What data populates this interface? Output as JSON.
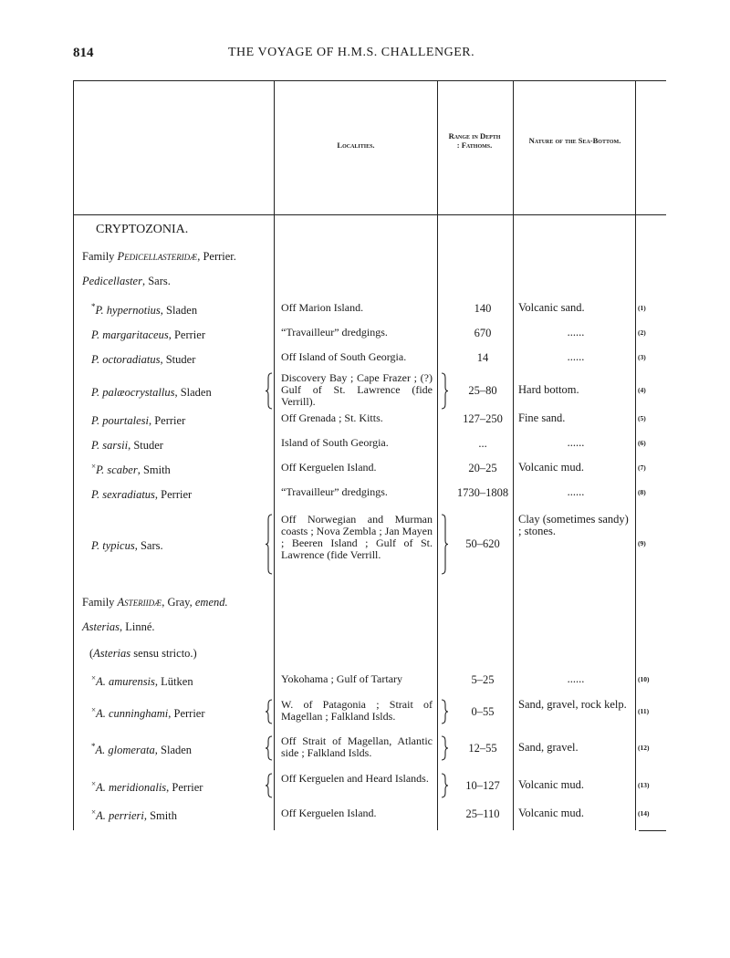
{
  "page_header": {
    "page_number": "814",
    "running_title": "THE VOYAGE OF H.M.S. CHALLENGER."
  },
  "columns": {
    "localities": "Localities.",
    "depth": "Range in Depth : Fathoms.",
    "bottom": "Nature of the Sea-Bottom."
  },
  "sections": {
    "cryptozonia": "CRYPTOZONIA.",
    "family1": {
      "prefix": "Family ",
      "name": "Pedicellasteridæ",
      "suffix": ", Perrier."
    },
    "genus1": {
      "name": "Pedicellaster",
      "suffix": ", Sars."
    },
    "family2": {
      "prefix": "Family ",
      "name": "Asteriidæ",
      "suffix": ", Gray, ",
      "emend": "emend."
    },
    "genus2": {
      "name": "Asterias",
      "suffix": ", Linné."
    },
    "subgenus2": {
      "open": "(",
      "name": "Asterias",
      "suffix": " sensu stricto.)"
    }
  },
  "rows_a": [
    {
      "mark": "*",
      "species": "P. hypernotius",
      "author": ", Sladen",
      "locality": "Off Marion Island.",
      "depth": "140",
      "bottom": "Volcanic sand.",
      "note": "(1)"
    },
    {
      "mark": "",
      "species": "P. margaritaceus",
      "author": ", Perrier",
      "locality": "“Travailleur” dredgings.",
      "depth": "670",
      "bottom": "......",
      "note": "(2)"
    },
    {
      "mark": "",
      "species": "P. octoradiatus",
      "author": ", Studer",
      "locality": "Off Island of South Georgia.",
      "depth": "14",
      "bottom": "......",
      "note": "(3)"
    },
    {
      "mark": "",
      "species": "P. palæocrystallus",
      "author": ", Sladen",
      "locality": "Discovery Bay ; Cape Frazer ; (?) Gulf of St. Lawrence (fide Verrill).",
      "depth": "25–80",
      "bottom": "Hard bottom.",
      "note": "(4)"
    },
    {
      "mark": "",
      "species": "P. pourtalesi",
      "author": ", Perrier",
      "locality": "Off Grenada ; St. Kitts.",
      "depth": "127–250",
      "bottom": "Fine sand.",
      "note": "(5)"
    },
    {
      "mark": "",
      "species": "P. sarsii",
      "author": ", Studer",
      "locality": "Island of South Georgia.",
      "depth": "...",
      "bottom": "......",
      "note": "(6)"
    },
    {
      "mark": "×",
      "species": "P. scaber",
      "author": ", Smith",
      "locality": "Off Kerguelen Island.",
      "depth": "20–25",
      "bottom": "Volcanic mud.",
      "note": "(7)"
    },
    {
      "mark": "",
      "species": "P. sexradiatus",
      "author": ", Perrier",
      "locality": "“Travailleur” dredgings.",
      "depth": "1730–1808",
      "bottom": "......",
      "note": "(8)"
    },
    {
      "mark": "",
      "species": "P. typicus",
      "author": ", Sars.",
      "locality": "Off Norwegian and Murman coasts ; Nova Zembla ; Jan Mayen ; Beeren Island ; Gulf of St. Lawrence (fide Verrill.",
      "depth": "50–620",
      "bottom": "Clay (sometimes sandy) ; stones.",
      "note": "(9)"
    }
  ],
  "rows_b": [
    {
      "mark": "×",
      "species": "A. amurensis",
      "author": ", Lütken",
      "locality": "Yokohama ; Gulf of Tartary",
      "depth": "5–25",
      "bottom": "......",
      "note": "(10)"
    },
    {
      "mark": "×",
      "species": "A. cunninghami",
      "author": ", Perrier",
      "locality": "W. of Patagonia ; Strait of Magellan ; Falkland Islds.",
      "depth": "0–55",
      "bottom": "Sand, gravel, rock kelp.",
      "note": "(11)"
    },
    {
      "mark": "*",
      "species": "A. glomerata",
      "author": ", Sladen",
      "locality": "Off Strait of Magellan, Atlantic side ; Falkland Islds.",
      "depth": "12–55",
      "bottom": "Sand, gravel.",
      "note": "(12)"
    },
    {
      "mark": "×",
      "species": "A. meridionalis",
      "author": ", Perrier",
      "locality": "Off Kerguelen and Heard Islands.",
      "depth": "10–127",
      "bottom": "Volcanic mud.",
      "note": "(13)"
    },
    {
      "mark": "×",
      "species": "A. perrieri",
      "author": ", Smith",
      "locality": "Off Kerguelen Island.",
      "depth": "25–110",
      "bottom": "Volcanic mud.",
      "note": "(14)"
    }
  ]
}
